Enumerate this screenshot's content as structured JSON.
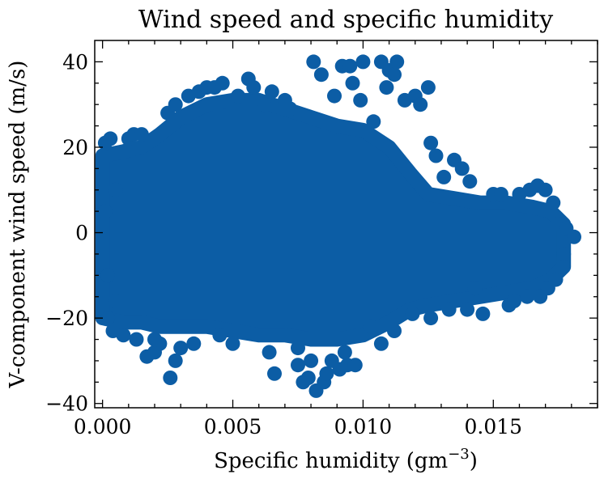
{
  "chart_data": {
    "type": "scatter",
    "title": "Wind speed and specific humidity",
    "xlabel_text": "Specific humidity (gm",
    "xlabel_exponent": "−3",
    "xlabel_close": ")",
    "ylabel": "V-component wind speed (m/s)",
    "xlim": [
      -0.0003,
      0.019
    ],
    "ylim": [
      -41,
      45
    ],
    "xticks": [
      0.0,
      0.005,
      0.01,
      0.015
    ],
    "xtick_labels": [
      "0.000",
      "0.005",
      "0.010",
      "0.015"
    ],
    "yticks": [
      -40,
      -20,
      0,
      20,
      40
    ],
    "ytick_labels": [
      "−40",
      "−20",
      "0",
      "20",
      "40"
    ],
    "grid": false,
    "marker_color": "#0c5da5",
    "series": [
      {
        "points": [
          [
            0.0001,
            21
          ],
          [
            0.0003,
            22
          ],
          [
            0.0002,
            -20
          ],
          [
            0.0004,
            -23
          ],
          [
            0.0001,
            5
          ],
          [
            0.0002,
            -10
          ],
          [
            0.0005,
            10
          ],
          [
            0.0008,
            -24
          ],
          [
            0.001,
            22
          ],
          [
            0.0012,
            23
          ],
          [
            0.0015,
            23
          ],
          [
            0.0013,
            -25
          ],
          [
            0.0017,
            -29
          ],
          [
            0.002,
            -28
          ],
          [
            0.0022,
            -26
          ],
          [
            0.0025,
            28
          ],
          [
            0.0026,
            -34
          ],
          [
            0.0028,
            -30
          ],
          [
            0.003,
            -27
          ],
          [
            0.0028,
            30
          ],
          [
            0.0033,
            32
          ],
          [
            0.0037,
            33
          ],
          [
            0.004,
            34
          ],
          [
            0.0043,
            34
          ],
          [
            0.0046,
            35
          ],
          [
            0.0052,
            32
          ],
          [
            0.0056,
            36
          ],
          [
            0.0058,
            34
          ],
          [
            0.0062,
            30
          ],
          [
            0.0065,
            33
          ],
          [
            0.0066,
            -33
          ],
          [
            0.0064,
            -28
          ],
          [
            0.007,
            31
          ],
          [
            0.0072,
            29
          ],
          [
            0.0075,
            -31
          ],
          [
            0.0077,
            -35
          ],
          [
            0.0079,
            -34
          ],
          [
            0.008,
            -30
          ],
          [
            0.0082,
            -37
          ],
          [
            0.0085,
            -35
          ],
          [
            0.0086,
            -33
          ],
          [
            0.0088,
            -30
          ],
          [
            0.0091,
            -32
          ],
          [
            0.0094,
            -31
          ],
          [
            0.0097,
            -31
          ],
          [
            0.0081,
            40
          ],
          [
            0.0084,
            37
          ],
          [
            0.0089,
            32
          ],
          [
            0.0092,
            39
          ],
          [
            0.0095,
            39
          ],
          [
            0.0096,
            35
          ],
          [
            0.0099,
            31
          ],
          [
            0.01,
            40
          ],
          [
            0.0104,
            26
          ],
          [
            0.0107,
            40
          ],
          [
            0.0109,
            34
          ],
          [
            0.011,
            38
          ],
          [
            0.0112,
            37
          ],
          [
            0.0113,
            40
          ],
          [
            0.0116,
            31
          ],
          [
            0.012,
            32
          ],
          [
            0.0122,
            30
          ],
          [
            0.0125,
            34
          ],
          [
            0.0126,
            21
          ],
          [
            0.0128,
            18
          ],
          [
            0.0131,
            13
          ],
          [
            0.0133,
            -18
          ],
          [
            0.0135,
            17
          ],
          [
            0.0138,
            15
          ],
          [
            0.0141,
            12
          ],
          [
            0.0143,
            -13
          ],
          [
            0.0146,
            -19
          ],
          [
            0.015,
            9
          ],
          [
            0.0153,
            9
          ],
          [
            0.0156,
            -17
          ],
          [
            0.016,
            9
          ],
          [
            0.0164,
            10
          ],
          [
            0.0167,
            11
          ],
          [
            0.017,
            10
          ],
          [
            0.0173,
            7
          ],
          [
            0.0175,
            2
          ],
          [
            0.0178,
            1
          ],
          [
            0.0181,
            -1
          ],
          [
            0.0177,
            -5
          ],
          [
            0.0174,
            -11
          ],
          [
            0.0171,
            -13
          ],
          [
            0.0168,
            -15
          ],
          [
            0.0163,
            -15
          ],
          [
            0.0158,
            -16
          ],
          [
            0.014,
            -18
          ],
          [
            0.0126,
            -20
          ],
          [
            0.0119,
            -19
          ],
          [
            0.0112,
            -23
          ],
          [
            0.0107,
            -26
          ],
          [
            0.0103,
            -22
          ],
          [
            0.0093,
            -28
          ],
          [
            0.0075,
            -27
          ],
          [
            0.005,
            -26
          ],
          [
            0.0045,
            -24
          ],
          [
            0.0035,
            -26
          ],
          [
            0.002,
            -25
          ],
          [
            0.0005,
            -16
          ]
        ]
      }
    ]
  }
}
